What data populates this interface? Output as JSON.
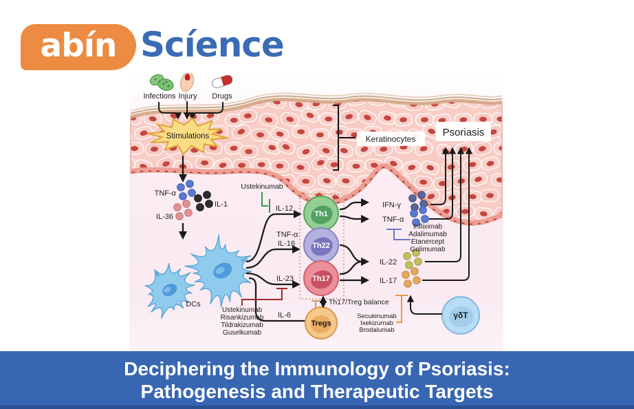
{
  "logo": {
    "brand": "abín",
    "suffix": "Scíence"
  },
  "banner": {
    "title_line1": "Deciphering the Immunology of Psoriasis:",
    "title_line2": "Pathogenesis and Therapeutic Targets"
  },
  "triggers": {
    "infections": "Infections",
    "injury": "Injury",
    "drugs": "Drugs"
  },
  "skin": {
    "stimulations": "Stimulations",
    "keratinocytes": "Keratinocytes",
    "psoriasis": "Psoriasis"
  },
  "mediators": {
    "tnf_alpha_left": "TNF-α",
    "il1": "IL-1",
    "il36": "IL-36",
    "il12": "IL-12",
    "tnf_alpha_mid": "TNF-α",
    "il16": "IL-16",
    "il23": "IL-23",
    "il6": "IL-6",
    "ifn_gamma": "IFN-γ",
    "tnf_alpha_right": "TNF-α",
    "il22": "IL-22",
    "il17": "IL-17"
  },
  "cells": {
    "dcs": "DCs",
    "th1": "Th1",
    "th22": "Th22",
    "th17": "Th17",
    "tregs": "Tregs",
    "gamma_delta_t": "γδT"
  },
  "balance_label": "Th17/Treg balance",
  "drugs": {
    "il12_inhibitor": "Ustekinumab",
    "tnf_inhibitors": [
      "Infliximab",
      "Adalimumab",
      "Etanercept",
      "Golimumab"
    ],
    "il23_inhibitors": [
      "Ustekinumab",
      "Risankizumab",
      "Tildrakizumab",
      "Guselkumab"
    ],
    "il17_inhibitors": [
      "Secukinumab",
      "Ixekizumab",
      "Brodalumab"
    ]
  },
  "colors": {
    "banner_blue": "#3866b2",
    "logo_orange": "#ec8b41",
    "logo_blue": "#3a6cb5",
    "inhibitor_green": "#2f9948",
    "inhibitor_dark_red": "#9e2b25",
    "inhibitor_blue": "#6b79c5",
    "inhibitor_orange": "#e8973f"
  }
}
